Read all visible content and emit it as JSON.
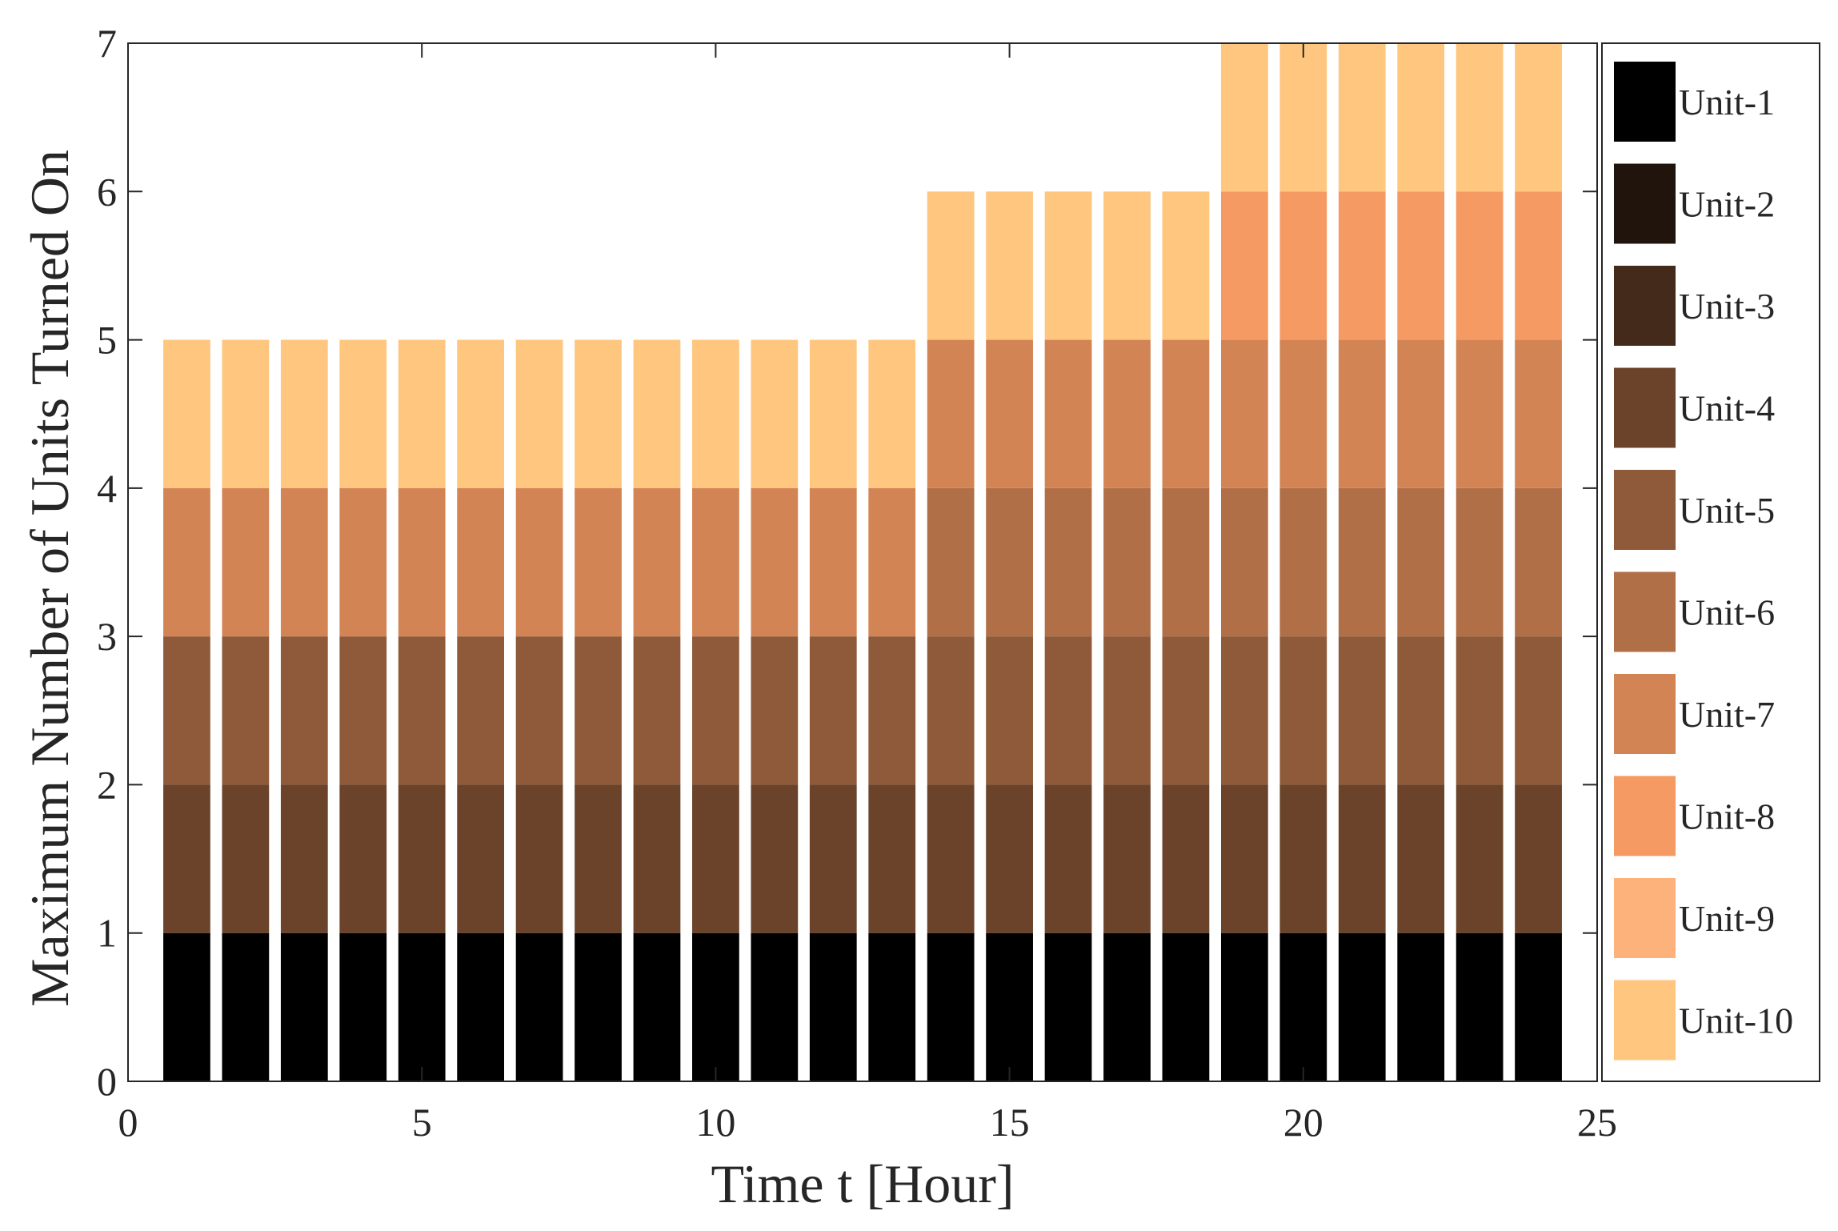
{
  "chart_data": {
    "type": "bar",
    "stacked": true,
    "x": [
      1,
      2,
      3,
      4,
      5,
      6,
      7,
      8,
      9,
      10,
      11,
      12,
      13,
      14,
      15,
      16,
      17,
      18,
      19,
      20,
      21,
      22,
      23,
      24
    ],
    "series": [
      {
        "name": "Unit-1",
        "color": "#000000",
        "values": [
          1,
          1,
          1,
          1,
          1,
          1,
          1,
          1,
          1,
          1,
          1,
          1,
          1,
          1,
          1,
          1,
          1,
          1,
          1,
          1,
          1,
          1,
          1,
          1
        ]
      },
      {
        "name": "Unit-2",
        "color": "#20140d",
        "values": [
          0,
          0,
          0,
          0,
          0,
          0,
          0,
          0,
          0,
          0,
          0,
          0,
          0,
          0,
          0,
          0,
          0,
          0,
          0,
          0,
          0,
          0,
          0,
          0
        ]
      },
      {
        "name": "Unit-3",
        "color": "#432a1b",
        "values": [
          0,
          0,
          0,
          0,
          0,
          0,
          0,
          0,
          0,
          0,
          0,
          0,
          0,
          0,
          0,
          0,
          0,
          0,
          0,
          0,
          0,
          0,
          0,
          0
        ]
      },
      {
        "name": "Unit-4",
        "color": "#6a432a",
        "values": [
          1,
          1,
          1,
          1,
          1,
          1,
          1,
          1,
          1,
          1,
          1,
          1,
          1,
          1,
          1,
          1,
          1,
          1,
          1,
          1,
          1,
          1,
          1,
          1
        ]
      },
      {
        "name": "Unit-5",
        "color": "#8e5a39",
        "values": [
          1,
          1,
          1,
          1,
          1,
          1,
          1,
          1,
          1,
          1,
          1,
          1,
          1,
          1,
          1,
          1,
          1,
          1,
          1,
          1,
          1,
          1,
          1,
          1
        ]
      },
      {
        "name": "Unit-6",
        "color": "#b06f47",
        "values": [
          0,
          0,
          0,
          0,
          0,
          0,
          0,
          0,
          0,
          0,
          0,
          0,
          0,
          1,
          1,
          1,
          1,
          1,
          1,
          1,
          1,
          1,
          1,
          1
        ]
      },
      {
        "name": "Unit-7",
        "color": "#d38454",
        "values": [
          1,
          1,
          1,
          1,
          1,
          1,
          1,
          1,
          1,
          1,
          1,
          1,
          1,
          1,
          1,
          1,
          1,
          1,
          1,
          1,
          1,
          1,
          1,
          1
        ]
      },
      {
        "name": "Unit-8",
        "color": "#f59a62",
        "values": [
          0,
          0,
          0,
          0,
          0,
          0,
          0,
          0,
          0,
          0,
          0,
          0,
          0,
          0,
          0,
          0,
          0,
          0,
          1,
          1,
          1,
          1,
          1,
          1
        ]
      },
      {
        "name": "Unit-9",
        "color": "#fcb27a",
        "values": [
          0,
          0,
          0,
          0,
          0,
          0,
          0,
          0,
          0,
          0,
          0,
          0,
          0,
          0,
          0,
          0,
          0,
          0,
          0,
          0,
          0,
          0,
          0,
          0
        ]
      },
      {
        "name": "Unit-10",
        "color": "#fec67f",
        "values": [
          1,
          1,
          1,
          1,
          1,
          1,
          1,
          1,
          1,
          1,
          1,
          1,
          1,
          1,
          1,
          1,
          1,
          1,
          1,
          1,
          1,
          1,
          1,
          1
        ]
      }
    ],
    "xlabel": "Time t [Hour]",
    "ylabel": "Maximum Number of Units Turned On",
    "xlim": [
      0,
      25
    ],
    "ylim": [
      0,
      7
    ],
    "xticks": [
      0,
      5,
      10,
      15,
      20,
      25
    ],
    "yticks": [
      0,
      1,
      2,
      3,
      4,
      5,
      6,
      7
    ],
    "bar_width": 0.8,
    "grid": false,
    "legend_position": "right"
  }
}
